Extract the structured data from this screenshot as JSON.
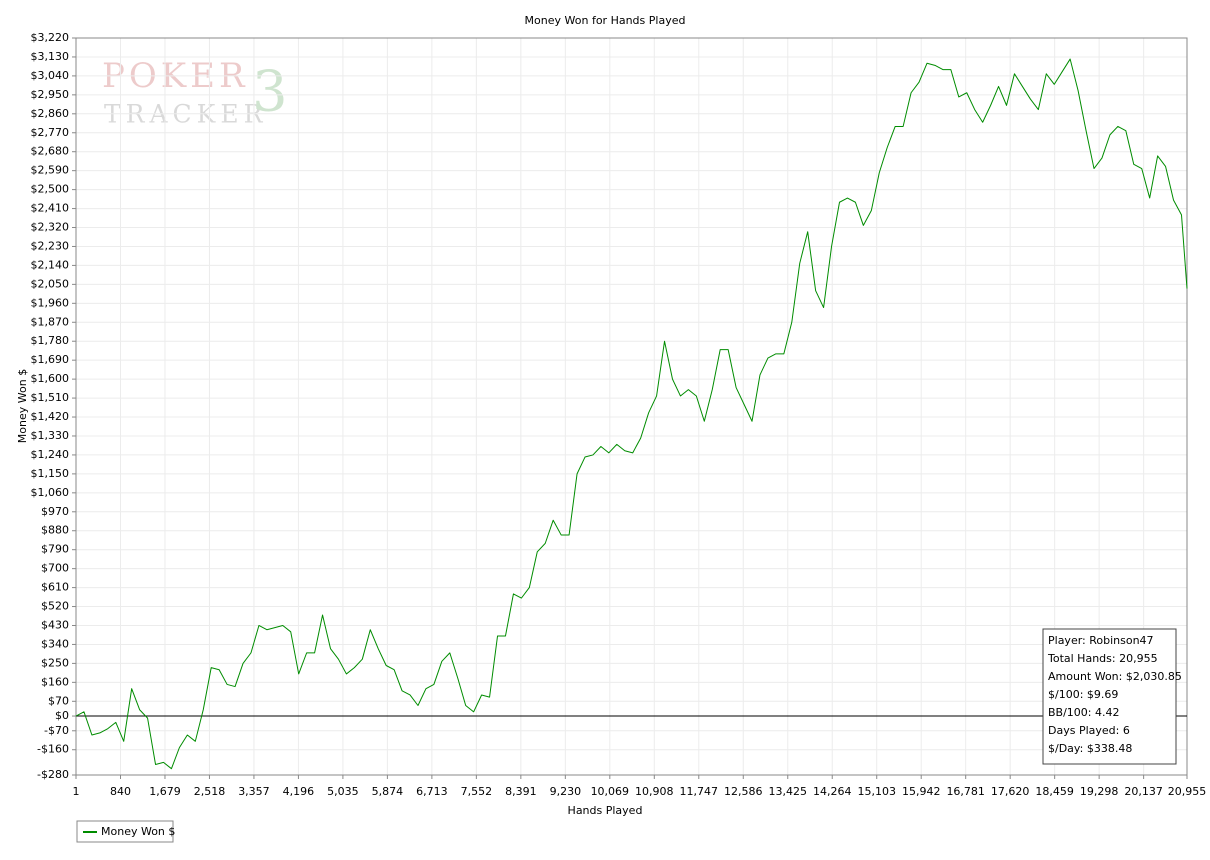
{
  "chart_data": {
    "type": "line",
    "title": "Money Won for Hands Played",
    "xlabel": "Hands Played",
    "ylabel": "Money Won $",
    "watermark": [
      "POKER",
      "TRACKER",
      "3"
    ],
    "x": [
      1,
      151,
      301,
      451,
      601,
      751,
      901,
      1051,
      1201,
      1351,
      1501,
      1651,
      1801,
      1951,
      2101,
      2251,
      2401,
      2551,
      2701,
      2851,
      3001,
      3151,
      3301,
      3451,
      3601,
      3751,
      3901,
      4051,
      4201,
      4351,
      4501,
      4651,
      4801,
      4951,
      5101,
      5251,
      5401,
      5551,
      5701,
      5851,
      6001,
      6151,
      6301,
      6451,
      6601,
      6751,
      6901,
      7051,
      7201,
      7351,
      7501,
      7651,
      7801,
      7951,
      8101,
      8251,
      8401,
      8551,
      8701,
      8851,
      9001,
      9151,
      9301,
      9451,
      9601,
      9751,
      9901,
      10051,
      10201,
      10351,
      10501,
      10651,
      10801,
      10951,
      11101,
      11251,
      11401,
      11551,
      11701,
      11851,
      12001,
      12151,
      12301,
      12451,
      12601,
      12751,
      12901,
      13051,
      13201,
      13351,
      13501,
      13651,
      13801,
      13951,
      14101,
      14251,
      14401,
      14551,
      14701,
      14851,
      15001,
      15151,
      15301,
      15451,
      15601,
      15751,
      15901,
      16051,
      16201,
      16351,
      16501,
      16651,
      16801,
      16951,
      17101,
      17251,
      17401,
      17551,
      17701,
      17851,
      18001,
      18151,
      18301,
      18451,
      18601,
      18751,
      18901,
      19051,
      19201,
      19351,
      19501,
      19651,
      19801,
      19951,
      20101,
      20251,
      20401,
      20551,
      20701,
      20851,
      20955
    ],
    "series": [
      {
        "name": "Money Won $",
        "color": "#008c00",
        "values": [
          0,
          20,
          -90,
          -80,
          -60,
          -30,
          -120,
          130,
          30,
          -10,
          -230,
          -220,
          -250,
          -150,
          -90,
          -120,
          30,
          230,
          220,
          150,
          140,
          250,
          300,
          430,
          410,
          420,
          430,
          400,
          200,
          300,
          300,
          480,
          320,
          270,
          200,
          230,
          270,
          410,
          320,
          240,
          220,
          120,
          100,
          50,
          130,
          150,
          260,
          300,
          180,
          50,
          20,
          100,
          90,
          380,
          380,
          580,
          560,
          610,
          780,
          820,
          930,
          860,
          860,
          1150,
          1230,
          1240,
          1280,
          1250,
          1290,
          1260,
          1250,
          1320,
          1440,
          1520,
          1780,
          1600,
          1520,
          1550,
          1520,
          1400,
          1550,
          1740,
          1740,
          1560,
          1480,
          1400,
          1620,
          1700,
          1720,
          1720,
          1870,
          2150,
          2300,
          2020,
          1940,
          2230,
          2440,
          2460,
          2440,
          2330,
          2400,
          2580,
          2700,
          2800,
          2800,
          2960,
          3010,
          3100,
          3090,
          3070,
          3070,
          2940,
          2960,
          2880,
          2820,
          2900,
          2990,
          2900,
          3050,
          2990,
          2930,
          2880,
          3050,
          3000,
          3060,
          3120,
          2970,
          2780,
          2600,
          2650,
          2760,
          2800,
          2780,
          2620,
          2600,
          2460,
          2660,
          2610,
          2450,
          2380,
          2030
        ]
      }
    ],
    "xlim": [
      1,
      20955
    ],
    "ylim": [
      -280,
      3220
    ],
    "xticks": [
      1,
      840,
      {
        "value": 1679,
        "label": "1,679"
      },
      {
        "value": 2518,
        "label": "2,518"
      },
      {
        "value": 3357,
        "label": "3,357"
      },
      {
        "value": 4196,
        "label": "4,196"
      },
      {
        "value": 5035,
        "label": "5,035"
      },
      {
        "value": 5874,
        "label": "5,874"
      },
      {
        "value": 6713,
        "label": "6,713"
      },
      {
        "value": 7552,
        "label": "7,552"
      },
      {
        "value": 8391,
        "label": "8,391"
      },
      {
        "value": 9230,
        "label": "9,230"
      },
      {
        "value": 10069,
        "label": "10,069"
      },
      {
        "value": 10908,
        "label": "10,908"
      },
      {
        "value": 11747,
        "label": "11,747"
      },
      {
        "value": 12586,
        "label": "12,586"
      },
      {
        "value": 13425,
        "label": "13,425"
      },
      {
        "value": 14264,
        "label": "14,264"
      },
      {
        "value": 15103,
        "label": "15,103"
      },
      {
        "value": 15942,
        "label": "15,942"
      },
      {
        "value": 16781,
        "label": "16,781"
      },
      {
        "value": 17620,
        "label": "17,620"
      },
      {
        "value": 18459,
        "label": "18,459"
      },
      {
        "value": 19298,
        "label": "19,298"
      },
      {
        "value": 20137,
        "label": "20,137"
      },
      {
        "value": 20955,
        "label": "20,955"
      }
    ],
    "yticks": [
      {
        "value": -280,
        "label": "-$280"
      },
      {
        "value": -160,
        "label": "-$160"
      },
      {
        "value": -70,
        "label": "-$70"
      },
      {
        "value": 0,
        "label": "$0"
      },
      {
        "value": 70,
        "label": "$70"
      },
      {
        "value": 160,
        "label": "$160"
      },
      {
        "value": 250,
        "label": "$250"
      },
      {
        "value": 340,
        "label": "$340"
      },
      {
        "value": 430,
        "label": "$430"
      },
      {
        "value": 520,
        "label": "$520"
      },
      {
        "value": 610,
        "label": "$610"
      },
      {
        "value": 700,
        "label": "$700"
      },
      {
        "value": 790,
        "label": "$790"
      },
      {
        "value": 880,
        "label": "$880"
      },
      {
        "value": 970,
        "label": "$970"
      },
      {
        "value": 1060,
        "label": "$1,060"
      },
      {
        "value": 1150,
        "label": "$1,150"
      },
      {
        "value": 1240,
        "label": "$1,240"
      },
      {
        "value": 1330,
        "label": "$1,330"
      },
      {
        "value": 1420,
        "label": "$1,420"
      },
      {
        "value": 1510,
        "label": "$1,510"
      },
      {
        "value": 1600,
        "label": "$1,600"
      },
      {
        "value": 1690,
        "label": "$1,690"
      },
      {
        "value": 1780,
        "label": "$1,780"
      },
      {
        "value": 1870,
        "label": "$1,870"
      },
      {
        "value": 1960,
        "label": "$1,960"
      },
      {
        "value": 2050,
        "label": "$2,050"
      },
      {
        "value": 2140,
        "label": "$2,140"
      },
      {
        "value": 2230,
        "label": "$2,230"
      },
      {
        "value": 2320,
        "label": "$2,320"
      },
      {
        "value": 2410,
        "label": "$2,410"
      },
      {
        "value": 2500,
        "label": "$2,500"
      },
      {
        "value": 2590,
        "label": "$2,590"
      },
      {
        "value": 2680,
        "label": "$2,680"
      },
      {
        "value": 2770,
        "label": "$2,770"
      },
      {
        "value": 2860,
        "label": "$2,860"
      },
      {
        "value": 2950,
        "label": "$2,950"
      },
      {
        "value": 3040,
        "label": "$3,040"
      },
      {
        "value": 3130,
        "label": "$3,130"
      },
      {
        "value": 3220,
        "label": "$3,220"
      }
    ],
    "grid": true,
    "zero_line": true,
    "legend": "bottom-left",
    "stats_box": [
      "Player: Robinson47",
      "Total Hands: 20,955",
      "Amount Won: $2,030.85",
      "$/100: $9.69",
      "BB/100: 4.42",
      "Days Played: 6",
      "$/Day: $338.48"
    ]
  }
}
